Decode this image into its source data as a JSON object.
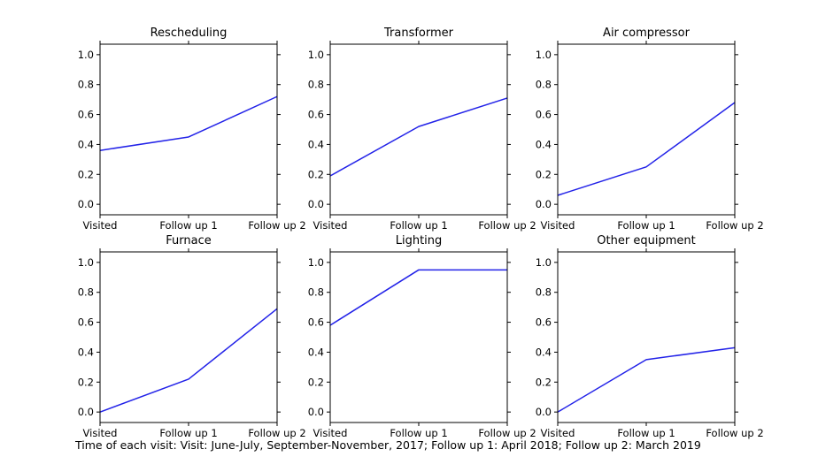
{
  "figure": {
    "caption": "Time of each visit: Visit: June-July, September-November, 2017; Follow up 1: April 2018; Follow up 2: March 2019",
    "colors": {
      "line": "#2222e8",
      "axis": "#000000",
      "text": "#000000",
      "background": "#ffffff"
    }
  },
  "chart_data": [
    {
      "type": "line",
      "title": "Rescheduling",
      "categories": [
        "Visited",
        "Follow up 1",
        "Follow up 2"
      ],
      "values": [
        0.36,
        0.45,
        0.72
      ],
      "yticks": [
        0.0,
        0.2,
        0.4,
        0.6,
        0.8,
        1.0
      ],
      "ylim": [
        -0.07,
        1.07
      ],
      "xlabel": "",
      "ylabel": "",
      "grid": false,
      "legend": "none"
    },
    {
      "type": "line",
      "title": "Transformer",
      "categories": [
        "Visited",
        "Follow up 1",
        "Follow up 2"
      ],
      "values": [
        0.19,
        0.52,
        0.71
      ],
      "yticks": [
        0.0,
        0.2,
        0.4,
        0.6,
        0.8,
        1.0
      ],
      "ylim": [
        -0.07,
        1.07
      ],
      "xlabel": "",
      "ylabel": "",
      "grid": false,
      "legend": "none"
    },
    {
      "type": "line",
      "title": "Air compressor",
      "categories": [
        "Visited",
        "Follow up 1",
        "Follow up 2"
      ],
      "values": [
        0.06,
        0.25,
        0.68
      ],
      "yticks": [
        0.0,
        0.2,
        0.4,
        0.6,
        0.8,
        1.0
      ],
      "ylim": [
        -0.07,
        1.07
      ],
      "xlabel": "",
      "ylabel": "",
      "grid": false,
      "legend": "none"
    },
    {
      "type": "line",
      "title": "Furnace",
      "categories": [
        "Visited",
        "Follow up 1",
        "Follow up 2"
      ],
      "values": [
        0.0,
        0.22,
        0.69
      ],
      "yticks": [
        0.0,
        0.2,
        0.4,
        0.6,
        0.8,
        1.0
      ],
      "ylim": [
        -0.07,
        1.07
      ],
      "xlabel": "",
      "ylabel": "",
      "grid": false,
      "legend": "none"
    },
    {
      "type": "line",
      "title": "Lighting",
      "categories": [
        "Visited",
        "Follow up 1",
        "Follow up 2"
      ],
      "values": [
        0.58,
        0.95,
        0.95
      ],
      "yticks": [
        0.0,
        0.2,
        0.4,
        0.6,
        0.8,
        1.0
      ],
      "ylim": [
        -0.07,
        1.07
      ],
      "xlabel": "",
      "ylabel": "",
      "grid": false,
      "legend": "none"
    },
    {
      "type": "line",
      "title": "Other equipment",
      "categories": [
        "Visited",
        "Follow up 1",
        "Follow up 2"
      ],
      "values": [
        0.0,
        0.35,
        0.43
      ],
      "yticks": [
        0.0,
        0.2,
        0.4,
        0.6,
        0.8,
        1.0
      ],
      "ylim": [
        -0.07,
        1.07
      ],
      "xlabel": "",
      "ylabel": "",
      "grid": false,
      "legend": "none"
    }
  ]
}
